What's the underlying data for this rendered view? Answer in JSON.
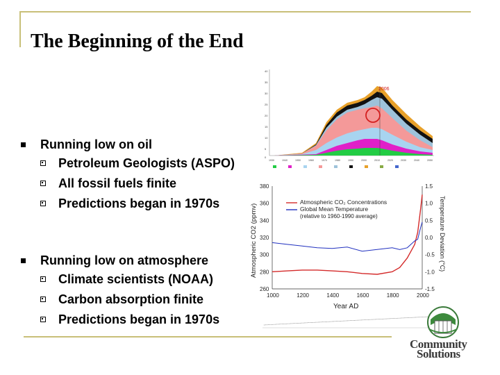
{
  "slide": {
    "title": "The Beginning of the End",
    "bullets": [
      {
        "text": "Running low on oil",
        "subitems": [
          "Petroleum Geologists (ASPO)",
          "All fossil fuels finite",
          "Predictions began in 1970s"
        ]
      },
      {
        "text": "Running low on atmosphere",
        "subitems": [
          "Climate scientists (NOAA)",
          "Carbon absorption finite",
          "Predictions began in 1970s"
        ]
      }
    ]
  },
  "oil_chart": {
    "callout": "2006",
    "x_ticks": [
      "1930",
      "1940",
      "1950",
      "1960",
      "1970",
      "1980",
      "1990",
      "2000",
      "2010",
      "2020",
      "2030",
      "2040",
      "2050"
    ],
    "y_ticks": [
      "0",
      "5",
      "10",
      "15",
      "20",
      "25",
      "30",
      "35",
      "40"
    ]
  },
  "chart_data": {
    "type": "line",
    "xlabel": "Year AD",
    "ylabel_left": "Atmospheric CO2 (ppmv)",
    "ylabel_right": "Temperature Deviation (°C)",
    "x_ticks": [
      "1000",
      "1200",
      "1400",
      "1600",
      "1800",
      "2000"
    ],
    "y_left_ticks": [
      "380",
      "360",
      "340",
      "320",
      "300",
      "280",
      "260"
    ],
    "y_right_ticks": [
      "1.5",
      "1.0",
      "0.5",
      "0.0",
      "-0.5",
      "-1.0",
      "-1.5"
    ],
    "xlim": [
      1000,
      2000
    ],
    "ylim_left": [
      260,
      380
    ],
    "ylim_right": [
      -1.5,
      1.5
    ],
    "legend": {
      "co2": "Atmospheric CO₂ Concentrations",
      "temp": "Global Mean Temperature",
      "temp_note": "(relative to 1960-1990 average)"
    },
    "series": [
      {
        "name": "Atmospheric CO₂ Concentrations",
        "color": "#d42a2a",
        "x": [
          1000,
          1100,
          1200,
          1300,
          1400,
          1500,
          1600,
          1700,
          1800,
          1850,
          1900,
          1950,
          1970,
          1990,
          2000
        ],
        "values": [
          280,
          281,
          282,
          282,
          281,
          280,
          278,
          277,
          280,
          285,
          296,
          312,
          326,
          354,
          370
        ]
      },
      {
        "name": "Global Mean Temperature",
        "color": "#1f2fbf",
        "x": [
          1000,
          1100,
          1200,
          1300,
          1400,
          1500,
          1600,
          1700,
          1800,
          1850,
          1900,
          1950,
          1970,
          1990,
          2000
        ],
        "values": [
          -0.15,
          -0.2,
          -0.25,
          -0.3,
          -0.32,
          -0.28,
          -0.4,
          -0.35,
          -0.3,
          -0.35,
          -0.3,
          -0.1,
          -0.05,
          0.3,
          0.45
        ]
      }
    ]
  },
  "logo": {
    "line1": "Community",
    "line2": "Solutions"
  }
}
